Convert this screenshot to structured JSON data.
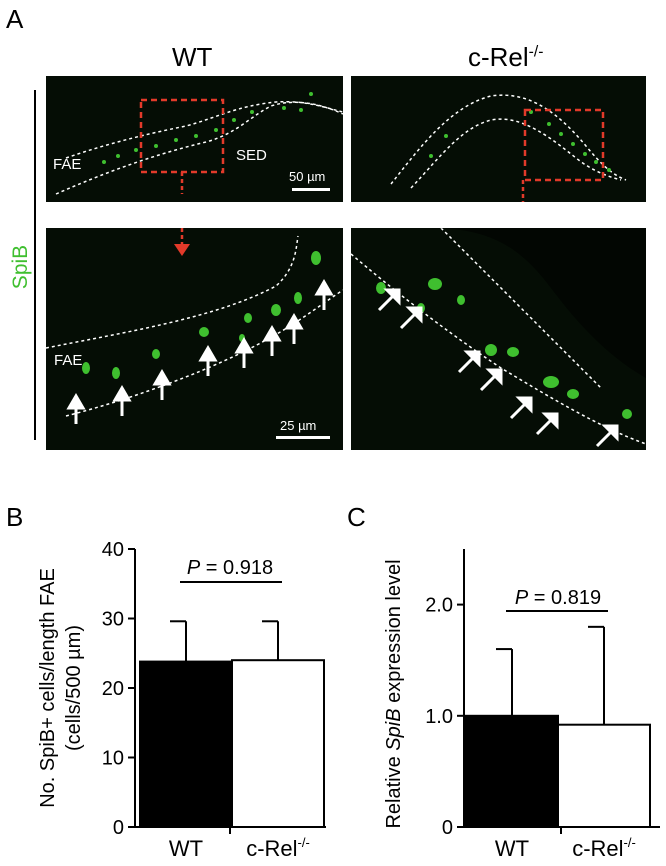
{
  "panelA": {
    "letter": "A",
    "col_left": "WT",
    "col_right_base": "c-Rel",
    "col_right_sup": "-/-",
    "stain": "SpiB",
    "label_fae_top": "FAE",
    "label_sed": "SED",
    "scale_top": "50 µm",
    "label_fae_bottom": "FAE",
    "scale_bottom": "25 µm"
  },
  "panelB": {
    "letter": "B",
    "pvalue": "P = 0.918",
    "ylabel_line1": "No. SpiB+ cells/length FAE",
    "ylabel_line2": "(cells/500 µm)"
  },
  "panelC": {
    "letter": "C",
    "pvalue": "P = 0.819",
    "ylabel_prefix": "Relative ",
    "ylabel_gene": "SpiB",
    "ylabel_suffix": " expression level"
  },
  "chart_data": [
    {
      "type": "bar",
      "categories": [
        "WT",
        "c-Rel-/-"
      ],
      "values": [
        23.8,
        24.0
      ],
      "errors": [
        5.8,
        5.6
      ],
      "ylabel": "No. SpiB+ cells/length FAE (cells/500 µm)",
      "ylim": [
        0,
        40
      ],
      "yticks": [
        "0",
        "10",
        "20",
        "30",
        "40"
      ],
      "colors": [
        "#000000",
        "#ffffff"
      ]
    },
    {
      "type": "bar",
      "categories": [
        "WT",
        "c-Rel-/-"
      ],
      "values": [
        1.0,
        0.92
      ],
      "errors": [
        0.6,
        0.88
      ],
      "ylabel": "Relative SpiB expression level",
      "ylim": [
        0,
        2.5
      ],
      "yticks": [
        "0",
        "1.0",
        "2.0"
      ],
      "colors": [
        "#000000",
        "#ffffff"
      ]
    }
  ]
}
